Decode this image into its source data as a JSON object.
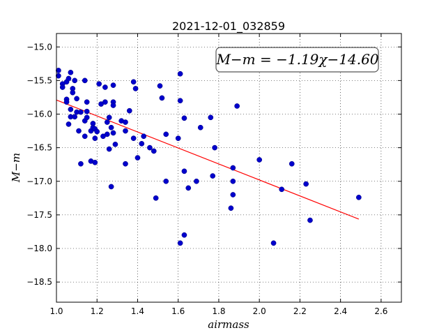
{
  "chart_data": {
    "type": "scatter",
    "title": "2021-12-01_032859",
    "xlabel": "airmass",
    "ylabel": "M−m",
    "xlim": [
      1.0,
      2.7
    ],
    "ylim": [
      -18.8,
      -14.8
    ],
    "y_inverted": true,
    "grid": true,
    "xticks": [
      1.0,
      1.2,
      1.4,
      1.6,
      1.8,
      2.0,
      2.2,
      2.4,
      2.6
    ],
    "xtick_labels": [
      "1.0",
      "1.2",
      "1.4",
      "1.6",
      "1.8",
      "2.0",
      "2.2",
      "2.4",
      "2.6"
    ],
    "yticks": [
      -15.0,
      -15.5,
      -16.0,
      -16.5,
      -17.0,
      -17.5,
      -18.0,
      -18.5
    ],
    "ytick_labels": [
      "−15.0",
      "−15.5",
      "−16.0",
      "−16.5",
      "−17.0",
      "−17.5",
      "−18.0",
      "−18.5"
    ],
    "annotation": "M−m = −1.19χ−14.60",
    "marker_color": "#0000cc",
    "fit_color": "#ff0000",
    "fit": {
      "slope": -1.19,
      "intercept": -14.6,
      "x_range": [
        1.0,
        2.49
      ]
    },
    "points": [
      [
        1.01,
        -15.35
      ],
      [
        1.01,
        -15.43
      ],
      [
        1.03,
        -15.55
      ],
      [
        1.03,
        -15.6
      ],
      [
        1.05,
        -15.52
      ],
      [
        1.06,
        -15.47
      ],
      [
        1.07,
        -15.38
      ],
      [
        1.08,
        -15.62
      ],
      [
        1.08,
        -15.68
      ],
      [
        1.09,
        -15.5
      ],
      [
        1.05,
        -15.78
      ],
      [
        1.05,
        -15.82
      ],
      [
        1.07,
        -15.93
      ],
      [
        1.1,
        -15.77
      ],
      [
        1.1,
        -15.97
      ],
      [
        1.07,
        -16.04
      ],
      [
        1.09,
        -16.04
      ],
      [
        1.06,
        -16.15
      ],
      [
        1.12,
        -15.97
      ],
      [
        1.14,
        -15.5
      ],
      [
        1.15,
        -15.82
      ],
      [
        1.15,
        -15.96
      ],
      [
        1.14,
        -16.1
      ],
      [
        1.15,
        -16.05
      ],
      [
        1.11,
        -16.25
      ],
      [
        1.14,
        -16.33
      ],
      [
        1.17,
        -16.25
      ],
      [
        1.18,
        -16.14
      ],
      [
        1.18,
        -16.2
      ],
      [
        1.19,
        -16.22
      ],
      [
        1.2,
        -16.26
      ],
      [
        1.19,
        -16.36
      ],
      [
        1.21,
        -15.55
      ],
      [
        1.22,
        -15.85
      ],
      [
        1.24,
        -15.82
      ],
      [
        1.24,
        -15.6
      ],
      [
        1.25,
        -16.12
      ],
      [
        1.26,
        -16.05
      ],
      [
        1.28,
        -15.57
      ],
      [
        1.28,
        -15.82
      ],
      [
        1.28,
        -15.87
      ],
      [
        1.28,
        -16.28
      ],
      [
        1.27,
        -16.2
      ],
      [
        1.25,
        -16.3
      ],
      [
        1.23,
        -16.33
      ],
      [
        1.26,
        -16.52
      ],
      [
        1.29,
        -16.45
      ],
      [
        1.12,
        -16.74
      ],
      [
        1.17,
        -16.7
      ],
      [
        1.19,
        -16.72
      ],
      [
        1.27,
        -17.08
      ],
      [
        1.32,
        -16.1
      ],
      [
        1.34,
        -16.12
      ],
      [
        1.34,
        -16.25
      ],
      [
        1.36,
        -15.95
      ],
      [
        1.38,
        -15.52
      ],
      [
        1.39,
        -15.62
      ],
      [
        1.38,
        -16.36
      ],
      [
        1.4,
        -16.65
      ],
      [
        1.42,
        -16.44
      ],
      [
        1.43,
        -16.33
      ],
      [
        1.46,
        -16.5
      ],
      [
        1.48,
        -16.55
      ],
      [
        1.34,
        -16.74
      ],
      [
        1.51,
        -15.58
      ],
      [
        1.52,
        -15.76
      ],
      [
        1.54,
        -16.3
      ],
      [
        1.54,
        -17.0
      ],
      [
        1.49,
        -17.25
      ],
      [
        1.6,
        -16.36
      ],
      [
        1.61,
        -15.4
      ],
      [
        1.61,
        -15.8
      ],
      [
        1.63,
        -16.06
      ],
      [
        1.63,
        -16.85
      ],
      [
        1.65,
        -17.1
      ],
      [
        1.69,
        -17.0
      ],
      [
        1.71,
        -16.2
      ],
      [
        1.76,
        -16.05
      ],
      [
        1.78,
        -16.5
      ],
      [
        1.77,
        -16.92
      ],
      [
        1.61,
        -17.92
      ],
      [
        1.63,
        -17.8
      ],
      [
        1.87,
        -16.8
      ],
      [
        1.87,
        -17.0
      ],
      [
        1.87,
        -17.2
      ],
      [
        1.86,
        -17.4
      ],
      [
        1.89,
        -15.88
      ],
      [
        2.0,
        -16.68
      ],
      [
        2.11,
        -17.12
      ],
      [
        2.16,
        -16.74
      ],
      [
        2.07,
        -17.92
      ],
      [
        2.23,
        -17.04
      ],
      [
        2.25,
        -17.58
      ],
      [
        2.49,
        -17.24
      ]
    ]
  }
}
